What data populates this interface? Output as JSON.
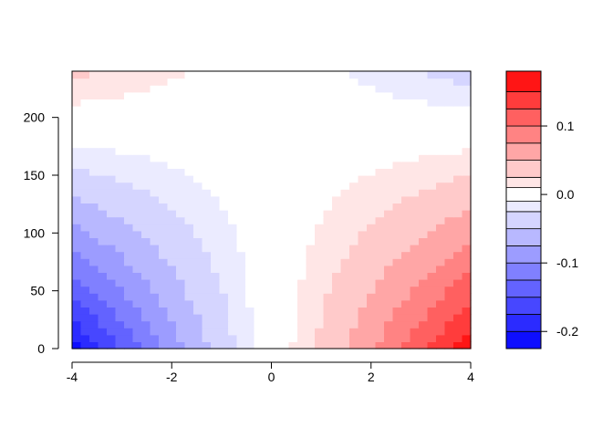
{
  "chart_data": {
    "type": "heatmap",
    "subtype": "filled-contour",
    "title": "",
    "xlabel": "",
    "ylabel": "",
    "xlim": [
      -4,
      4
    ],
    "ylim": [
      0,
      240
    ],
    "x_ticks": [
      -4,
      -2,
      0,
      2,
      4
    ],
    "x_tick_labels": [
      "-4",
      "-2",
      "0",
      "2",
      "4"
    ],
    "y_ticks": [
      0,
      50,
      100,
      150,
      200
    ],
    "y_tick_labels": [
      "0",
      "50",
      "100",
      "150",
      "200"
    ],
    "value_range": [
      -0.225,
      0.18
    ],
    "levels": [
      -0.225,
      -0.2,
      -0.175,
      -0.15,
      -0.125,
      -0.1,
      -0.075,
      -0.05,
      -0.025,
      -0.01,
      0.01,
      0.025,
      0.05,
      0.075,
      0.1,
      0.125,
      0.15,
      0.18
    ],
    "colorbar_ticks": [
      -0.2,
      -0.1,
      0.0,
      0.1
    ],
    "colorbar_tick_labels": [
      "-0.2",
      "-0.1",
      "0.0",
      "0.1"
    ],
    "palette": {
      "negative": "#0000ff",
      "zero": "#ffffff",
      "positive": "#ff0000"
    },
    "surface_samples": [
      {
        "x": -4,
        "y": 0,
        "z": -0.21
      },
      {
        "x": 4,
        "y": 0,
        "z": 0.17
      },
      {
        "x": -4,
        "y": 240,
        "z": 0.03
      },
      {
        "x": 4,
        "y": 240,
        "z": -0.05
      },
      {
        "x": 0,
        "y": 120,
        "z": 0.0
      }
    ],
    "grid": false,
    "legend": "colorbar-right"
  }
}
